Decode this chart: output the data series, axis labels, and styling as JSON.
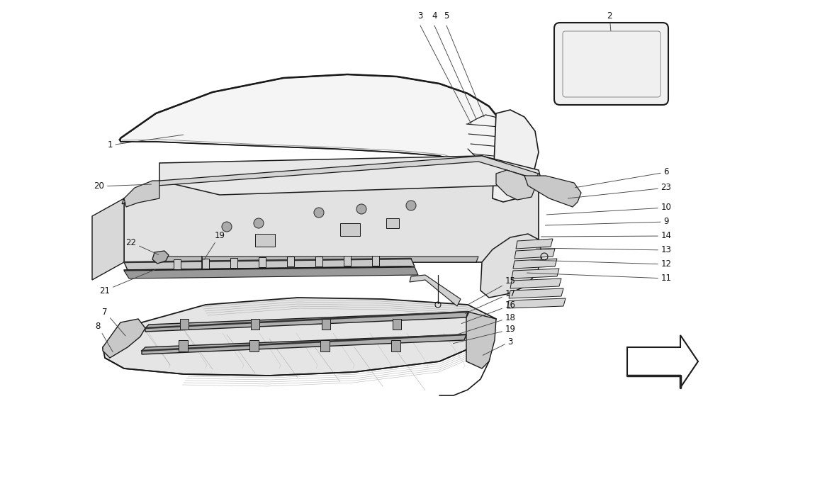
{
  "background_color": "#ffffff",
  "line_color": "#1a1a1a",
  "fig_width": 11.5,
  "fig_height": 6.83,
  "dpi": 100,
  "label_fontsize": 8.5,
  "label_color": "#111111",
  "arrow_color": "#444444",
  "arrow_lw": 0.65
}
